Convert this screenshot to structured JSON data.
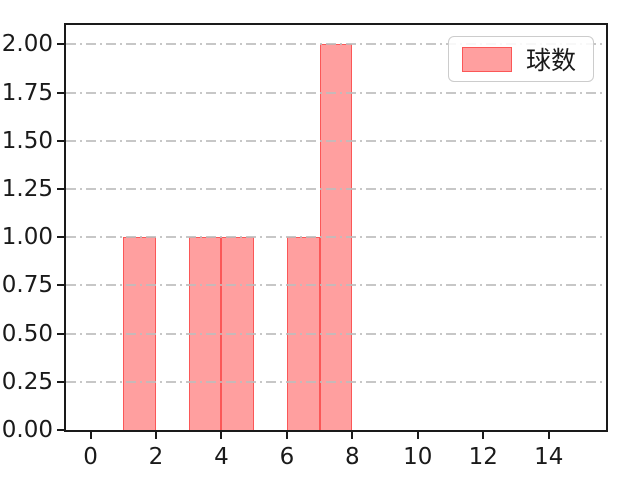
{
  "figure": {
    "background_color": "#ffffff",
    "text_color": "#1a1a1a"
  },
  "chart_data": {
    "type": "bar",
    "kind": "histogram",
    "title": "",
    "xlabel": "",
    "ylabel": "",
    "bars": [
      {
        "x_start": 1,
        "x_end": 2,
        "count": 1
      },
      {
        "x_start": 3,
        "x_end": 4,
        "count": 1
      },
      {
        "x_start": 4,
        "x_end": 5,
        "count": 1
      },
      {
        "x_start": 6,
        "x_end": 7,
        "count": 1
      },
      {
        "x_start": 7,
        "x_end": 8,
        "count": 2
      }
    ],
    "xlim": [
      -0.75,
      15.75
    ],
    "ylim": [
      0,
      2.1
    ],
    "xticks": [
      0,
      2,
      4,
      6,
      8,
      10,
      12,
      14
    ],
    "xtick_labels": [
      "0",
      "2",
      "4",
      "6",
      "8",
      "10",
      "12",
      "14"
    ],
    "yticks": [
      0,
      0.25,
      0.5,
      0.75,
      1.0,
      1.25,
      1.5,
      1.75,
      2.0
    ],
    "ytick_labels": [
      "0.00",
      "0.25",
      "0.50",
      "0.75",
      "1.00",
      "1.25",
      "1.50",
      "1.75",
      "2.00"
    ],
    "grid": {
      "on": true,
      "axis": "y",
      "style": "dash-dot",
      "color": "#bdbdbd",
      "above_bars": true
    },
    "legend": {
      "label": "球数",
      "position": "upper right"
    },
    "colors": {
      "bar_fill": "#fc9494",
      "bar_edge": "#ee4444",
      "spine": "#1a1a1a",
      "grid": "#bdbdbd"
    }
  }
}
